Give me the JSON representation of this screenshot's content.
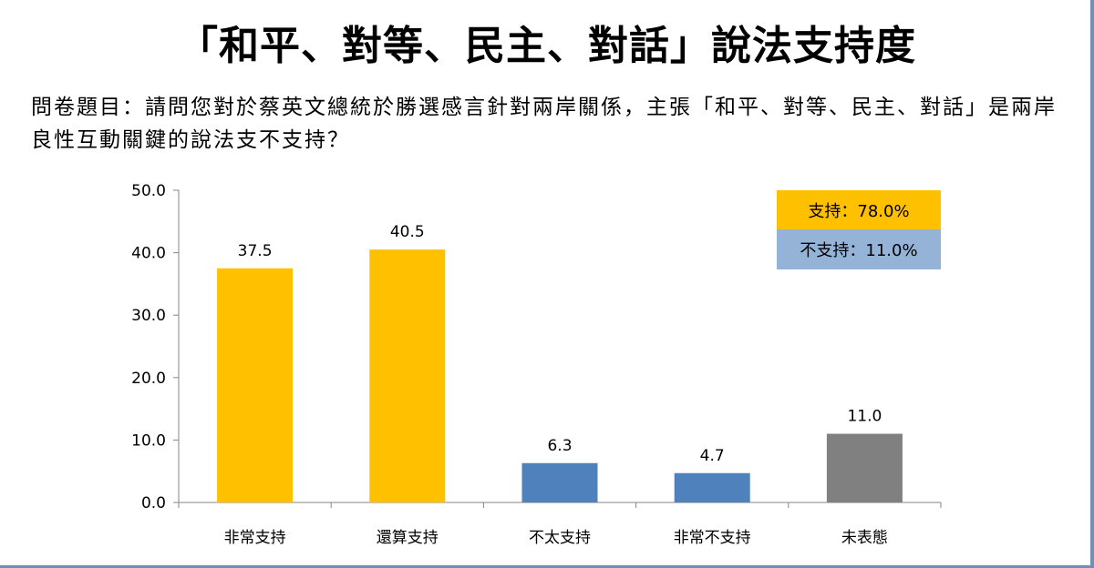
{
  "title": "「和平、對等、民主、對話」說法支持度",
  "question": "問卷題目：請問您對於蔡英文總統於勝選感言針對兩岸關係，主張「和平、對等、民主、對話」是兩岸良性互動關鍵的說法支不支持？",
  "legend": {
    "support": {
      "label": "支持：78.0%",
      "color": "#FFC000"
    },
    "oppose": {
      "label": "不支持：11.0%",
      "color": "#95B3D7"
    }
  },
  "chart_data": {
    "type": "bar",
    "categories": [
      "非常支持",
      "還算支持",
      "不太支持",
      "非常不支持",
      "未表態"
    ],
    "values": [
      37.5,
      40.5,
      6.3,
      4.7,
      11.0
    ],
    "data_labels": [
      "37.5",
      "40.5",
      "6.3",
      "4.7",
      "11.0"
    ],
    "colors": [
      "#FFC000",
      "#FFC000",
      "#4F81BD",
      "#4F81BD",
      "#808080"
    ],
    "ylim": [
      0,
      50
    ],
    "yticks": [
      0,
      10,
      20,
      30,
      40,
      50
    ],
    "ytick_labels": [
      "0.0",
      "10.0",
      "20.0",
      "30.0",
      "40.0",
      "50.0"
    ],
    "xlabel": "",
    "ylabel": "",
    "grid": false
  }
}
